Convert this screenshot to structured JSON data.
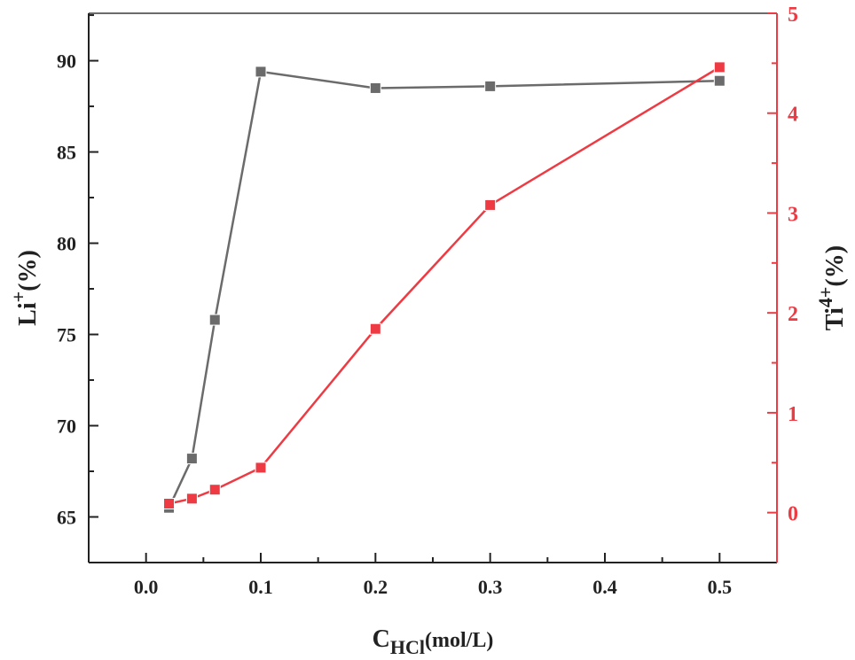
{
  "chart_data": {
    "type": "line",
    "title": "",
    "xlabel": {
      "main": "C",
      "sub": "HCl",
      "unit": "(mol/L)"
    },
    "ylabel_left": {
      "main": "Li",
      "sup": "+",
      "unit": "(%)"
    },
    "ylabel_right": {
      "main": "Ti",
      "sup": "4+",
      "unit": "(%)"
    },
    "xlim": [
      -0.05,
      0.55
    ],
    "ylim_left": [
      62.5,
      92.6
    ],
    "ylim_right": [
      -0.5,
      5
    ],
    "xticks": [
      0.0,
      0.1,
      0.2,
      0.3,
      0.4,
      0.5
    ],
    "xtick_labels": [
      "0.0",
      "0.1",
      "0.2",
      "0.3",
      "0.4",
      "0.5"
    ],
    "yticks_left": [
      65,
      70,
      75,
      80,
      85,
      90
    ],
    "ytick_labels_left": [
      "65",
      "70",
      "75",
      "80",
      "85",
      "90"
    ],
    "yticks_right": [
      0,
      1,
      2,
      3,
      4,
      5
    ],
    "ytick_labels_right": [
      "0",
      "1",
      "2",
      "3",
      "4",
      "5"
    ],
    "grid": false,
    "x": [
      0.02,
      0.04,
      0.06,
      0.1,
      0.2,
      0.3,
      0.5
    ],
    "series": [
      {
        "name": "Li+",
        "axis": "left",
        "color": "#6b6b6b",
        "marker": "square",
        "values": [
          65.5,
          68.2,
          75.8,
          89.4,
          88.5,
          88.6,
          88.9
        ]
      },
      {
        "name": "Ti4+",
        "axis": "right",
        "color": "#ee3b43",
        "marker": "square",
        "values": [
          0.09,
          0.14,
          0.23,
          0.45,
          1.84,
          3.08,
          4.46
        ]
      }
    ],
    "colors": {
      "left_axis": "#222222",
      "right_axis": "#ee3b43",
      "top_spine": "#6b6b6b"
    }
  }
}
